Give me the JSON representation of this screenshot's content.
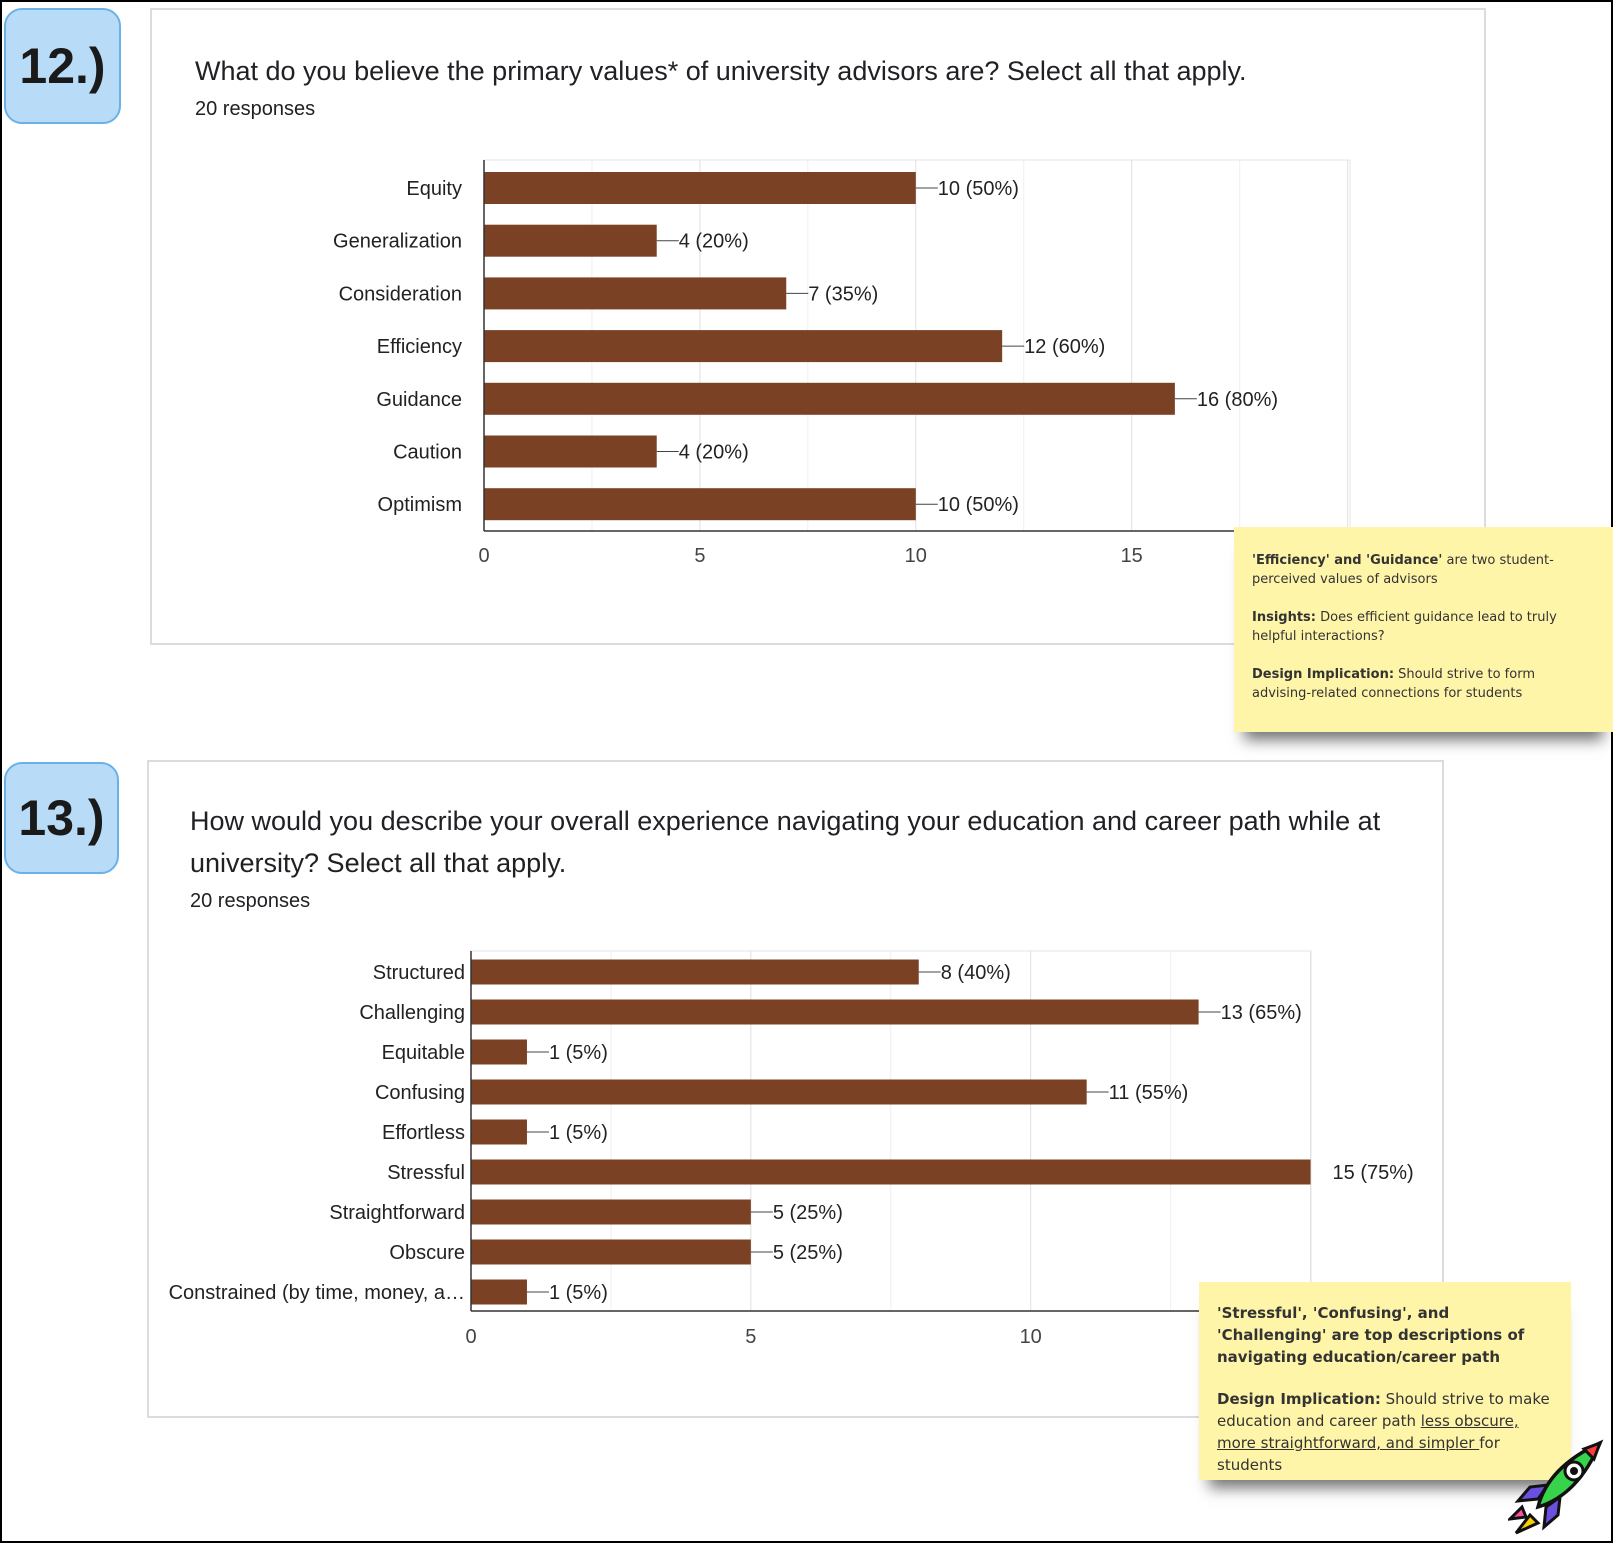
{
  "q12": {
    "badge": "12.)",
    "title": "What do you believe the primary values* of university advisors are? Select all that apply.",
    "responses": "20 responses"
  },
  "q13": {
    "badge": "13.)",
    "title_line1": "How would you describe your overall experience navigating your education and career path while at",
    "title_line2": "university? Select all that apply.",
    "responses": "20 responses"
  },
  "chart_data": [
    {
      "type": "bar",
      "orientation": "horizontal",
      "categories": [
        "Equity",
        "Generalization",
        "Consideration",
        "Efficiency",
        "Guidance",
        "Caution",
        "Optimism"
      ],
      "values": [
        10,
        4,
        7,
        12,
        16,
        4,
        10
      ],
      "data_labels": [
        "10 (50%)",
        "4 (20%)",
        "7 (35%)",
        "12 (60%)",
        "16 (80%)",
        "4 (20%)",
        "10 (50%)"
      ],
      "xticks": [
        0,
        5,
        10,
        15
      ],
      "xlim": [
        0,
        20
      ],
      "bar_color": "#7b4125",
      "grid": true
    },
    {
      "type": "bar",
      "orientation": "horizontal",
      "categories": [
        "Structured",
        "Challenging",
        "Equitable",
        "Confusing",
        "Effortless",
        "Stressful",
        "Straightforward",
        "Obscure",
        "Constrained (by time, money, a…"
      ],
      "values": [
        8,
        13,
        1,
        11,
        1,
        15,
        5,
        5,
        1
      ],
      "data_labels": [
        "8 (40%)",
        "13 (65%)",
        "1 (5%)",
        "11 (55%)",
        "1 (5%)",
        "15 (75%)",
        "5 (25%)",
        "5 (25%)",
        "1 (5%)"
      ],
      "xticks": [
        0,
        5,
        10
      ],
      "xlim": [
        0,
        15
      ],
      "bar_color": "#7b4125",
      "grid": true
    }
  ],
  "note1": {
    "headline_bold": "'Efficiency' and 'Guidance'",
    "headline_rest": " are two student-perceived values of advisors",
    "insights_label": "Insights:",
    "insights_text": " Does efficient guidance lead to truly helpful interactions?",
    "design_label": "Design Implication:",
    "design_text": " Should strive to form advising-related connections for students"
  },
  "note2": {
    "headline_bold": "'Stressful', 'Confusing', and 'Challenging' are top descriptions of navigating education/career path",
    "design_label": "Design Implication:",
    "design_text_1": " Should strive to make education and career path ",
    "design_text_underlined": "less obscure, more straightforward, and simpler ",
    "design_text_2": "for students"
  },
  "icons": {
    "corner": "rocket-icon"
  }
}
